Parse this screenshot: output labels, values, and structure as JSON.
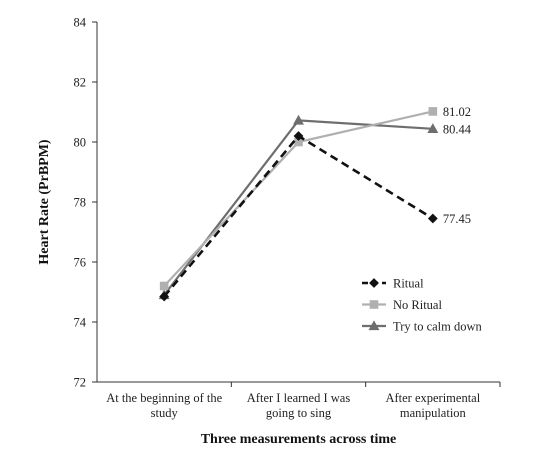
{
  "chart_data": {
    "type": "line",
    "title": "",
    "xlabel": "Three measurements across time",
    "ylabel": "Heart Rate (PrBPM)",
    "ylim": [
      72,
      84
    ],
    "yticks": [
      72,
      74,
      76,
      78,
      80,
      82,
      84
    ],
    "categories": [
      [
        "At the beginning of the",
        "study"
      ],
      [
        "After I learned I was",
        "going to sing"
      ],
      [
        "After experimental",
        "manipulation"
      ]
    ],
    "grid": false,
    "legend_position": "bottom-right",
    "series": [
      {
        "name": "Ritual",
        "values": [
          74.85,
          80.2,
          77.45
        ],
        "color": "#111111",
        "dash": "dashed",
        "marker": "diamond",
        "end_label": "77.45"
      },
      {
        "name": "No Ritual",
        "values": [
          75.2,
          80.0,
          81.02
        ],
        "color": "#b0b0b0",
        "dash": "solid",
        "marker": "square",
        "end_label": "81.02"
      },
      {
        "name": "Try to calm down",
        "values": [
          74.9,
          80.72,
          80.44
        ],
        "color": "#6e6e6e",
        "dash": "solid",
        "marker": "triangle",
        "end_label": "80.44"
      }
    ]
  }
}
